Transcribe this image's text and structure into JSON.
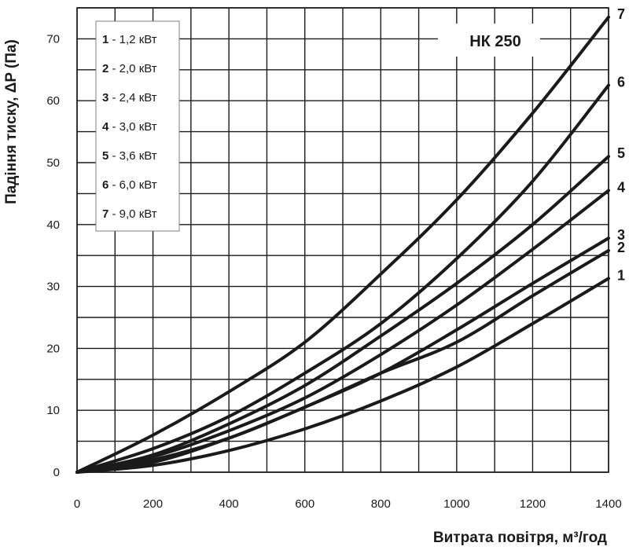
{
  "chart_data": {
    "type": "line",
    "title": "НК 250",
    "xlabel": "Витрата повітря, м³/год",
    "ylabel": "Падіння тиску, ΔP (Па)",
    "xlim": [
      0,
      1400
    ],
    "ylim": [
      0,
      75
    ],
    "xticks": [
      "0",
      "200",
      "400",
      "600",
      "800",
      "1000",
      "1200",
      "1400"
    ],
    "yticks": [
      "0",
      "10",
      "20",
      "30",
      "40",
      "50",
      "60",
      "70"
    ],
    "grid": true,
    "legend_position": "top-left",
    "x": [
      0,
      200,
      400,
      600,
      800,
      1000,
      1200,
      1400
    ],
    "series": [
      {
        "name": "1",
        "legend_num": "1",
        "legend_text": " - 1,2 кВт",
        "values": [
          0,
          1.1,
          3.5,
          7,
          11.5,
          17,
          24,
          31.3
        ]
      },
      {
        "name": "2",
        "legend_num": "2",
        "legend_text": " - 2,0 кВт",
        "values": [
          0,
          1.6,
          5.5,
          10.5,
          16,
          21,
          28.5,
          35.8
        ]
      },
      {
        "name": "3",
        "legend_num": "3",
        "legend_text": " - 2,4 кВт",
        "values": [
          0,
          2.0,
          5.5,
          10.5,
          16,
          23,
          30.5,
          37.8
        ]
      },
      {
        "name": "4",
        "legend_num": "4",
        "legend_text": " - 3,0 кВт",
        "values": [
          0,
          2.5,
          6.7,
          12,
          19,
          27,
          36,
          45.5
        ]
      },
      {
        "name": "5",
        "legend_num": "5",
        "legend_text": " - 3,6 кВт",
        "values": [
          0,
          2.8,
          7.8,
          14,
          22,
          30.5,
          40,
          51
        ]
      },
      {
        "name": "6",
        "legend_num": "6",
        "legend_text": " - 6,0 кВт",
        "values": [
          0,
          3.8,
          9,
          16,
          24,
          34.5,
          47,
          62.5
        ]
      },
      {
        "name": "7",
        "legend_num": "7",
        "legend_text": " - 9,0 кВт",
        "values": [
          0,
          6,
          13,
          21,
          32,
          44,
          58,
          73.5
        ]
      }
    ]
  }
}
